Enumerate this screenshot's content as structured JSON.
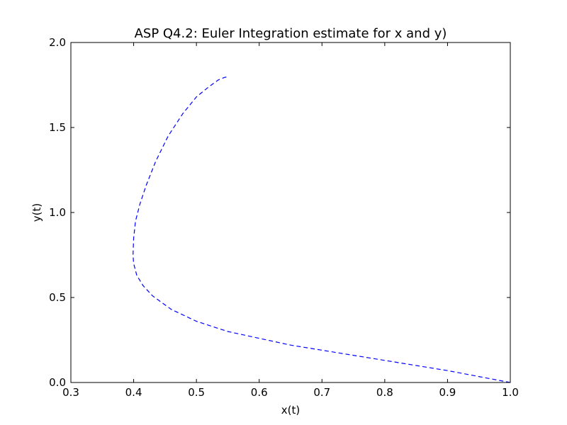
{
  "chart_data": {
    "type": "line",
    "title": "ASP Q4.2: Euler Integration estimate for x and y)",
    "xlabel": "x(t)",
    "ylabel": "y(t)",
    "xlim": [
      0.3,
      1.0
    ],
    "ylim": [
      0.0,
      2.0
    ],
    "xticks": [
      0.3,
      0.4,
      0.5,
      0.6,
      0.7,
      0.8,
      0.9,
      1.0
    ],
    "xtick_labels": [
      "0.3",
      "0.4",
      "0.5",
      "0.6",
      "0.7",
      "0.8",
      "0.9",
      "1.0"
    ],
    "yticks": [
      0.0,
      0.5,
      1.0,
      1.5,
      2.0
    ],
    "ytick_labels": [
      "0.0",
      "0.5",
      "1.0",
      "1.5",
      "2.0"
    ],
    "grid": false,
    "series": [
      {
        "color": "#0000ff",
        "linestyle": "dashed",
        "x": [
          1.0,
          0.95,
          0.9,
          0.85,
          0.8,
          0.75,
          0.7,
          0.65,
          0.6,
          0.55,
          0.5,
          0.46,
          0.43,
          0.415,
          0.405,
          0.4,
          0.399,
          0.4,
          0.403,
          0.41,
          0.42,
          0.435,
          0.455,
          0.478,
          0.5,
          0.52,
          0.535,
          0.545,
          0.552
        ],
        "y": [
          0.0,
          0.035,
          0.07,
          0.1,
          0.13,
          0.16,
          0.19,
          0.22,
          0.26,
          0.3,
          0.36,
          0.43,
          0.51,
          0.57,
          0.63,
          0.7,
          0.75,
          0.85,
          0.95,
          1.05,
          1.16,
          1.3,
          1.45,
          1.58,
          1.68,
          1.74,
          1.78,
          1.795,
          1.8
        ]
      }
    ]
  }
}
